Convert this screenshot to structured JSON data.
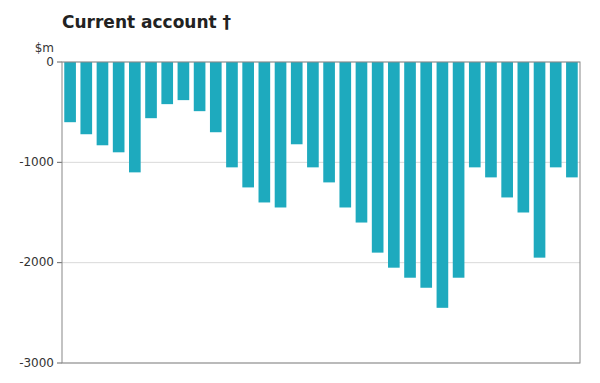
{
  "chart_data": {
    "type": "bar",
    "title": "Current account †",
    "ylabel": "$m",
    "categories": [
      null,
      null,
      null,
      null,
      null,
      null,
      null,
      null,
      null,
      null,
      null,
      null,
      null,
      null,
      null,
      null,
      null,
      null,
      null,
      null,
      null,
      null,
      null,
      null,
      null,
      null,
      null,
      null,
      null,
      null,
      null,
      null
    ],
    "values": [
      -600,
      -720,
      -830,
      -900,
      -1100,
      -560,
      -420,
      -380,
      -490,
      -700,
      -1050,
      -1250,
      -1400,
      -1450,
      -820,
      -1050,
      -1200,
      -1450,
      -1600,
      -1900,
      -2050,
      -2150,
      -2250,
      -2450,
      -2150,
      -1050,
      -1150,
      -1350,
      -1500,
      -1950,
      -1050,
      -1150
    ],
    "color": "#1eaabe",
    "ylim": [
      -3000,
      0
    ],
    "yticks": [
      0,
      -1000,
      -2000,
      -3000
    ],
    "grid": true,
    "tick_labels": "y"
  }
}
